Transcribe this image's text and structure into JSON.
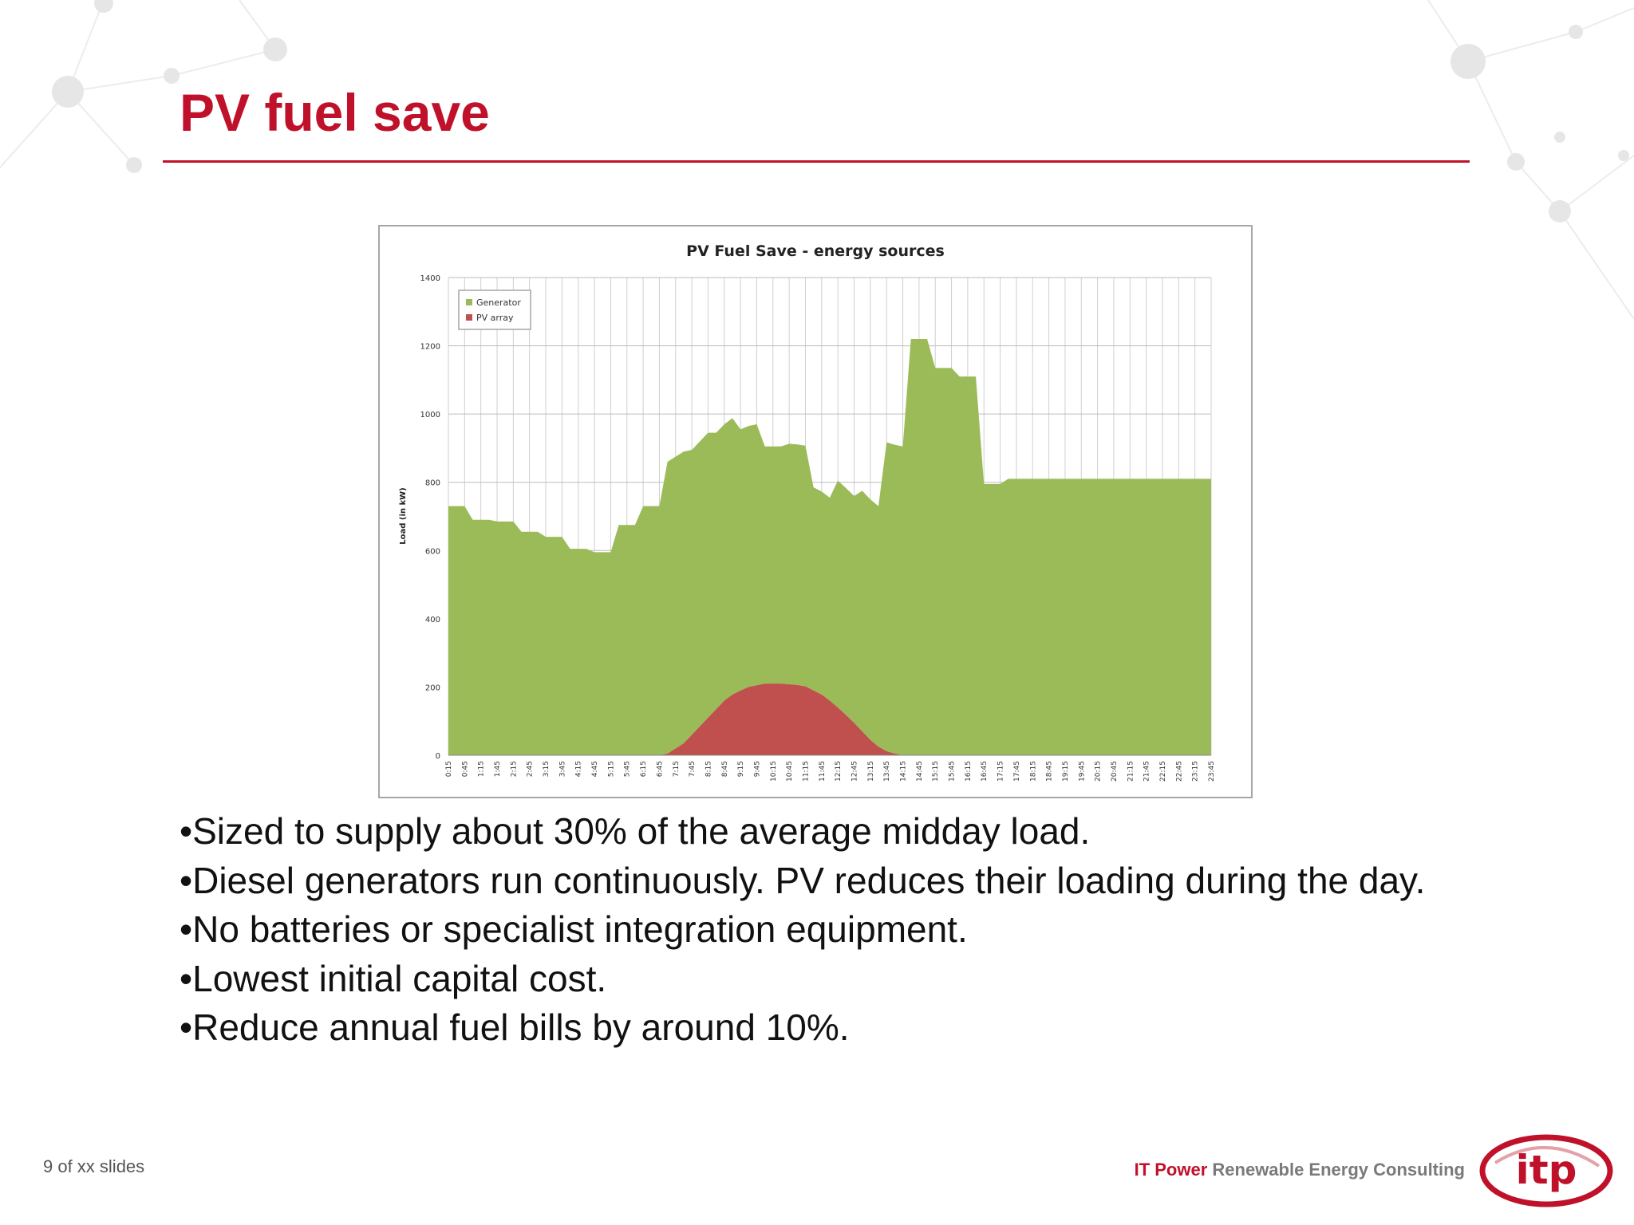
{
  "slide": {
    "title": "PV fuel save",
    "bullets": [
      "•Sized to supply about 30% of the average midday load.",
      "•Diesel generators run continuously. PV reduces their loading during the day.",
      "•No batteries or specialist integration equipment.",
      "•Lowest initial capital cost.",
      "•Reduce annual fuel bills by around 10%."
    ],
    "slide_number": "9 of xx slides",
    "footer": {
      "brand_primary": "IT Power",
      "brand_secondary": "Renewable Energy Consulting",
      "logo_text": "itp"
    }
  },
  "colors": {
    "title": "#c0112a",
    "generator": "#9bbb59",
    "pv_array": "#c0504d",
    "logo": "#c0112a"
  },
  "chart_data": {
    "type": "area",
    "stacked": true,
    "title": "PV Fuel Save - energy sources",
    "xlabel": "",
    "ylabel": "Load (in kW)",
    "ylim": [
      0,
      1400
    ],
    "yticks": [
      0,
      200,
      400,
      600,
      800,
      1000,
      1200,
      1400
    ],
    "grid": true,
    "legend_position": "top-left",
    "categories": [
      "0:15",
      "0:45",
      "1:15",
      "1:45",
      "2:15",
      "2:45",
      "3:15",
      "3:45",
      "4:15",
      "4:45",
      "5:15",
      "5:45",
      "6:15",
      "6:45",
      "7:15",
      "7:45",
      "8:15",
      "8:45",
      "9:15",
      "9:45",
      "10:15",
      "10:45",
      "11:15",
      "11:45",
      "12:15",
      "12:45",
      "13:15",
      "13:45",
      "14:15",
      "14:45",
      "15:15",
      "15:45",
      "16:15",
      "16:45",
      "17:15",
      "17:45",
      "18:15",
      "18:45",
      "19:15",
      "19:45",
      "20:15",
      "20:45",
      "21:15",
      "21:45",
      "22:15",
      "22:45",
      "23:15",
      "23:45"
    ],
    "x": [
      "0:15",
      "0:30",
      "0:45",
      "1:00",
      "1:15",
      "1:30",
      "1:45",
      "2:00",
      "2:15",
      "2:30",
      "2:45",
      "3:00",
      "3:15",
      "3:30",
      "3:45",
      "4:00",
      "4:15",
      "4:30",
      "4:45",
      "5:00",
      "5:15",
      "5:30",
      "5:45",
      "6:00",
      "6:15",
      "6:30",
      "6:45",
      "7:00",
      "7:15",
      "7:30",
      "7:45",
      "8:00",
      "8:15",
      "8:30",
      "8:45",
      "9:00",
      "9:15",
      "9:30",
      "9:45",
      "10:00",
      "10:15",
      "10:30",
      "10:45",
      "11:00",
      "11:15",
      "11:30",
      "11:45",
      "12:00",
      "12:15",
      "12:30",
      "12:45",
      "13:00",
      "13:15",
      "13:30",
      "13:45",
      "14:00",
      "14:15",
      "14:30",
      "14:45",
      "15:00",
      "15:15",
      "15:30",
      "15:45",
      "16:00",
      "16:15",
      "16:30",
      "16:45",
      "17:00",
      "17:15",
      "17:30",
      "17:45",
      "18:00",
      "18:15",
      "18:30",
      "18:45",
      "19:00",
      "19:15",
      "19:30",
      "19:45",
      "20:00",
      "20:15",
      "20:30",
      "20:45",
      "21:00",
      "21:15",
      "21:30",
      "21:45",
      "22:00",
      "22:15",
      "22:30",
      "22:45",
      "23:00",
      "23:15",
      "23:30",
      "23:45"
    ],
    "series": [
      {
        "name": "Generator",
        "color": "#9bbb59",
        "values": [
          730,
          730,
          730,
          690,
          690,
          690,
          685,
          685,
          685,
          655,
          655,
          655,
          640,
          640,
          640,
          605,
          605,
          605,
          595,
          595,
          595,
          675,
          675,
          675,
          730,
          730,
          730,
          855,
          855,
          855,
          835,
          835,
          835,
          810,
          810,
          810,
          765,
          765,
          765,
          695,
          695,
          695,
          705,
          705,
          705,
          595,
          595,
          595,
          665,
          665,
          665,
          705,
          705,
          705,
          905,
          905,
          905,
          1220,
          1220,
          1220,
          1135,
          1135,
          1135,
          1110,
          1110,
          1110,
          795,
          795,
          795,
          810,
          810,
          810,
          810,
          810,
          810,
          810,
          810,
          810,
          810,
          810,
          810,
          810,
          810,
          810,
          810,
          810,
          810,
          810,
          810,
          810,
          810,
          810,
          810,
          810,
          810
        ]
      },
      {
        "name": "PV array",
        "color": "#c0504d",
        "values": [
          0,
          0,
          0,
          0,
          0,
          0,
          0,
          0,
          0,
          0,
          0,
          0,
          0,
          0,
          0,
          0,
          0,
          0,
          0,
          0,
          0,
          0,
          0,
          0,
          0,
          0,
          0,
          5,
          20,
          35,
          60,
          85,
          110,
          135,
          160,
          178,
          190,
          200,
          205,
          210,
          210,
          210,
          208,
          206,
          202,
          190,
          178,
          160,
          140,
          118,
          95,
          70,
          45,
          25,
          12,
          5,
          0,
          0,
          0,
          0,
          0,
          0,
          0,
          0,
          0,
          0,
          0,
          0,
          0,
          0,
          0,
          0,
          0,
          0,
          0,
          0,
          0,
          0,
          0,
          0,
          0,
          0,
          0,
          0,
          0,
          0,
          0,
          0,
          0,
          0,
          0,
          0,
          0,
          0,
          0
        ]
      }
    ]
  }
}
